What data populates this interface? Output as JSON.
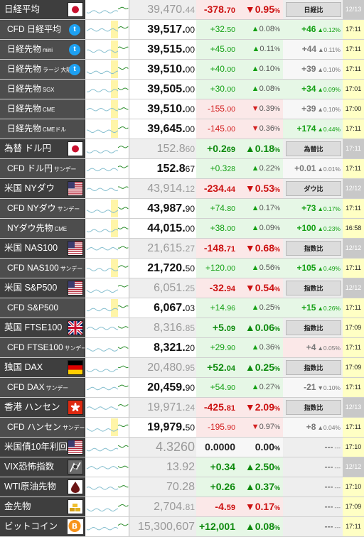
{
  "rows": [
    {
      "id": "nikkei",
      "hdr": true,
      "name": "日経平均",
      "sub": "",
      "icon": "japan-flag-icon",
      "chart": "none",
      "price_int": "39,470.",
      "price_dec": "44",
      "chg_int": "-378.",
      "chg_dec": "70",
      "dir": "down",
      "arrow": "▼",
      "pct": "0.95",
      "pct_unit": "%",
      "btn": "日経比",
      "diff": "",
      "diff_pct": "",
      "time": "12/13"
    },
    {
      "id": "cfd-nikkei",
      "name": "CFD 日経平均",
      "sub": "",
      "icon": "twitter-icon",
      "chart": "yellow",
      "price_int": "39,517.",
      "price_dec": "00",
      "chg_int": "+32.",
      "chg_dec": "50",
      "dir": "up",
      "arrow": "▲",
      "pct": "0.08",
      "pct_unit": "%",
      "diff": "+46",
      "diff_pct": "0.12%",
      "diff_dir": "up",
      "time": "17:11"
    },
    {
      "id": "nikkei-futures-mini",
      "name": "日経先物",
      "sub": "mini",
      "icon": "twitter-icon",
      "chart": "yellow",
      "price_int": "39,515.",
      "price_dec": "00",
      "chg_int": "+45.",
      "chg_dec": "00",
      "dir": "up",
      "arrow": "▲",
      "pct": "0.11",
      "pct_unit": "%",
      "diff": "+44",
      "diff_pct": "0.11%",
      "diff_dir": "flat",
      "time": "17:11"
    },
    {
      "id": "nikkei-futures-large",
      "name": "日経先物",
      "sub": "ラージ 大阪",
      "icon": "twitter-icon",
      "chart": "yellow",
      "price_int": "39,510.",
      "price_dec": "00",
      "chg_int": "+40.",
      "chg_dec": "00",
      "dir": "up",
      "arrow": "▲",
      "pct": "0.10",
      "pct_unit": "%",
      "diff": "+39",
      "diff_pct": "0.10%",
      "diff_dir": "flat",
      "time": "17:11"
    },
    {
      "id": "nikkei-futures-sgx",
      "name": "日経先物",
      "sub": "SGX",
      "icon": "",
      "chart": "yellow",
      "price_int": "39,505.",
      "price_dec": "00",
      "chg_int": "+30.",
      "chg_dec": "00",
      "dir": "up",
      "arrow": "▲",
      "pct": "0.08",
      "pct_unit": "%",
      "diff": "+34",
      "diff_pct": "0.09%",
      "diff_dir": "up",
      "time": "17:01"
    },
    {
      "id": "nikkei-futures-cme",
      "name": "日経先物",
      "sub": "CME",
      "icon": "",
      "chart": "yellow",
      "price_int": "39,510.",
      "price_dec": "00",
      "chg_int": "-155.",
      "chg_dec": "00",
      "dir": "down",
      "arrow": "▼",
      "pct": "0.39",
      "pct_unit": "%",
      "diff": "+39",
      "diff_pct": "0.10%",
      "diff_dir": "flat",
      "time": "17:00"
    },
    {
      "id": "nikkei-futures-cme-usd",
      "name": "日経先物",
      "sub": "CMEドル",
      "icon": "",
      "chart": "yellow",
      "price_int": "39,645.",
      "price_dec": "00",
      "chg_int": "-145.",
      "chg_dec": "00",
      "dir": "down",
      "arrow": "▼",
      "pct": "0.36",
      "pct_unit": "%",
      "diff": "+174",
      "diff_pct": "0.44%",
      "diff_dir": "up",
      "time": "17:11"
    },
    {
      "id": "usdjpy",
      "hdr": true,
      "name": "為替 ドル円",
      "sub": "",
      "icon": "japan-flag-icon",
      "chart": "none",
      "price_int": "152.8",
      "price_dec": "60",
      "chg_int": "+0.2",
      "chg_dec": "69",
      "dir": "up",
      "arrow": "▲",
      "pct": "0.18",
      "pct_unit": "%",
      "btn": "為替比",
      "diff": "",
      "diff_pct": "",
      "time": "17:11"
    },
    {
      "id": "cfd-usdjpy",
      "name": "CFD ドル円",
      "sub": "サンデー",
      "icon": "",
      "chart": "none",
      "price_int": "152.8",
      "price_dec": "67",
      "chg_int": "+0.3",
      "chg_dec": "28",
      "dir": "up",
      "arrow": "▲",
      "pct": "0.22",
      "pct_unit": "%",
      "diff": "+0.01",
      "diff_pct": "0.01%",
      "diff_dir": "flat",
      "time": "17:11"
    },
    {
      "id": "dow",
      "hdr": true,
      "name": "米国 NYダウ",
      "sub": "",
      "icon": "us-flag-icon",
      "chart": "none",
      "price_int": "43,914.",
      "price_dec": "12",
      "chg_int": "-234.",
      "chg_dec": "44",
      "dir": "down",
      "arrow": "▼",
      "pct": "0.53",
      "pct_unit": "%",
      "btn": "ダウ比",
      "diff": "",
      "diff_pct": "",
      "time": "12/12"
    },
    {
      "id": "cfd-dow",
      "name": "CFD NYダウ",
      "sub": "サンデー",
      "icon": "",
      "chart": "yellow",
      "price_int": "43,987.",
      "price_dec": "90",
      "chg_int": "+74.",
      "chg_dec": "80",
      "dir": "up",
      "arrow": "▲",
      "pct": "0.17",
      "pct_unit": "%",
      "diff": "+73",
      "diff_pct": "0.17%",
      "diff_dir": "up",
      "time": "17:11"
    },
    {
      "id": "dow-futures-cme",
      "name": "NYダウ先物",
      "sub": "CME",
      "icon": "",
      "chart": "yellow",
      "price_int": "44,015.",
      "price_dec": "00",
      "chg_int": "+38.",
      "chg_dec": "00",
      "dir": "up",
      "arrow": "▲",
      "pct": "0.09",
      "pct_unit": "%",
      "diff": "+100",
      "diff_pct": "0.23%",
      "diff_dir": "up",
      "time": "16:58"
    },
    {
      "id": "nasdaq",
      "hdr": true,
      "name": "米国 NAS100",
      "sub": "",
      "icon": "us-flag-icon",
      "chart": "none",
      "price_int": "21,615.",
      "price_dec": "27",
      "chg_int": "-148.",
      "chg_dec": "71",
      "dir": "down",
      "arrow": "▼",
      "pct": "0.68",
      "pct_unit": "%",
      "btn": "指数比",
      "diff": "",
      "diff_pct": "",
      "time": "12/12"
    },
    {
      "id": "cfd-nasdaq",
      "name": "CFD NAS100",
      "sub": "サンデー",
      "icon": "",
      "chart": "yellow",
      "price_int": "21,720.",
      "price_dec": "50",
      "chg_int": "+120.",
      "chg_dec": "00",
      "dir": "up",
      "arrow": "▲",
      "pct": "0.56",
      "pct_unit": "%",
      "diff": "+105",
      "diff_pct": "0.49%",
      "diff_dir": "up",
      "time": "17:11"
    },
    {
      "id": "sp500",
      "hdr": true,
      "name": "米国 S&P500",
      "sub": "",
      "icon": "us-flag-icon",
      "chart": "none",
      "price_int": "6,051.",
      "price_dec": "25",
      "chg_int": "-32.",
      "chg_dec": "94",
      "dir": "down",
      "arrow": "▼",
      "pct": "0.54",
      "pct_unit": "%",
      "btn": "指数比",
      "diff": "",
      "diff_pct": "",
      "time": "12/12"
    },
    {
      "id": "cfd-sp500",
      "name": "CFD S&P500",
      "sub": "",
      "icon": "",
      "chart": "yellow",
      "price_int": "6,067.",
      "price_dec": "03",
      "chg_int": "+14.",
      "chg_dec": "96",
      "dir": "up",
      "arrow": "▲",
      "pct": "0.25",
      "pct_unit": "%",
      "diff": "+15",
      "diff_pct": "0.26%",
      "diff_dir": "up",
      "time": "17:11"
    },
    {
      "id": "ftse",
      "hdr": true,
      "name": "英国 FTSE100",
      "sub": "",
      "icon": "uk-flag-icon",
      "chart": "none",
      "price_int": "8,316.",
      "price_dec": "85",
      "chg_int": "+5.",
      "chg_dec": "09",
      "dir": "up",
      "arrow": "▲",
      "pct": "0.06",
      "pct_unit": "%",
      "btn": "指数比",
      "diff": "",
      "diff_pct": "",
      "time": "17:09",
      "live": true
    },
    {
      "id": "cfd-ftse",
      "name": "CFD FTSE100",
      "sub": "サンデー",
      "icon": "",
      "chart": "none",
      "price_int": "8,321.",
      "price_dec": "20",
      "chg_int": "+29.",
      "chg_dec": "90",
      "dir": "up",
      "arrow": "▲",
      "pct": "0.36",
      "pct_unit": "%",
      "diff": "+4",
      "diff_pct": "0.05%",
      "diff_dir": "flat",
      "time": "17:11",
      "diffbg": "down"
    },
    {
      "id": "dax",
      "hdr": true,
      "name": "独国 DAX",
      "sub": "",
      "icon": "germany-flag-icon",
      "chart": "none",
      "price_int": "20,480.",
      "price_dec": "95",
      "chg_int": "+52.",
      "chg_dec": "04",
      "dir": "up",
      "arrow": "▲",
      "pct": "0.25",
      "pct_unit": "%",
      "btn": "指数比",
      "diff": "",
      "diff_pct": "",
      "time": "17:09",
      "live": true
    },
    {
      "id": "cfd-dax",
      "name": "CFD DAX",
      "sub": "サンデー",
      "icon": "",
      "chart": "none",
      "price_int": "20,459.",
      "price_dec": "90",
      "chg_int": "+54.",
      "chg_dec": "90",
      "dir": "up",
      "arrow": "▲",
      "pct": "0.27",
      "pct_unit": "%",
      "diff": "-21",
      "diff_pct": "0.10%",
      "diff_dir": "flat",
      "diff_arrow": "▼",
      "time": "17:11"
    },
    {
      "id": "hangseng",
      "hdr": true,
      "name": "香港 ハンセン",
      "sub": "",
      "icon": "hongkong-flag-icon",
      "chart": "none",
      "price_int": "19,971.",
      "price_dec": "24",
      "chg_int": "-425.",
      "chg_dec": "81",
      "dir": "down",
      "arrow": "▼",
      "pct": "2.09",
      "pct_unit": "%",
      "btn": "指数比",
      "diff": "",
      "diff_pct": "",
      "time": "12/13"
    },
    {
      "id": "cfd-hangseng",
      "name": "CFD ハンセン",
      "sub": "サンデー",
      "icon": "",
      "chart": "yellow",
      "price_int": "19,979.",
      "price_dec": "50",
      "chg_int": "-195.",
      "chg_dec": "90",
      "dir": "down",
      "arrow": "▼",
      "pct": "0.97",
      "pct_unit": "%",
      "diff": "+8",
      "diff_pct": "0.04%",
      "diff_dir": "flat",
      "time": "17:11"
    },
    {
      "id": "us10y",
      "hdr": true,
      "name": "米国債10年利回り",
      "sub": "",
      "icon": "us-flag-icon",
      "chart": "none",
      "price_int": "4.3260",
      "price_dec": "",
      "chg_int": "0.0000",
      "chg_dec": "",
      "dir": "flat",
      "arrow": "",
      "pct": "0.00",
      "pct_unit": "%",
      "btn": "",
      "diff": "---",
      "diff_pct": "---",
      "time": "17:10",
      "live": true,
      "small": true
    },
    {
      "id": "vix",
      "hdr": true,
      "name": "VIX恐怖指数",
      "sub": "",
      "icon": "vix-icon",
      "chart": "none",
      "price_int": "13.92",
      "price_dec": "",
      "chg_int": "+0.34",
      "chg_dec": "",
      "dir": "up",
      "arrow": "▲",
      "pct": "2.50",
      "pct_unit": "%",
      "btn": "",
      "diff": "---",
      "diff_pct": "---",
      "time": "12/12"
    },
    {
      "id": "wti",
      "hdr": true,
      "name": "WTI原油先物",
      "sub": "",
      "icon": "oil-drop-icon",
      "chart": "none",
      "price_int": "70.28",
      "price_dec": "",
      "chg_int": "+0.26",
      "chg_dec": "",
      "dir": "up",
      "arrow": "▲",
      "pct": "0.37",
      "pct_unit": "%",
      "btn": "",
      "diff": "---",
      "diff_pct": "---",
      "time": "17:10",
      "live": true
    },
    {
      "id": "gold",
      "hdr": true,
      "name": "金先物",
      "sub": "",
      "icon": "gold-bars-icon",
      "chart": "none",
      "price_int": "2,704.",
      "price_dec": "81",
      "chg_int": "-4.",
      "chg_dec": "59",
      "dir": "down",
      "arrow": "▼",
      "pct": "0.17",
      "pct_unit": "%",
      "btn": "",
      "diff": "---",
      "diff_pct": "---",
      "time": "17:09",
      "live": true
    },
    {
      "id": "bitcoin",
      "hdr": true,
      "name": "ビットコイン",
      "sub": "",
      "icon": "bitcoin-icon",
      "chart": "none",
      "price_int": "15,300,607",
      "price_dec": "",
      "chg_int": "+12,001",
      "chg_dec": "",
      "dir": "up",
      "arrow": "▲",
      "pct": "0.08",
      "pct_unit": "%",
      "btn": "",
      "diff": "---",
      "diff_pct": "---",
      "time": "17:11",
      "live": true
    }
  ],
  "colors": {
    "up": "#14a014",
    "down": "#d32020",
    "chart_highlight": "#fff5a8"
  }
}
